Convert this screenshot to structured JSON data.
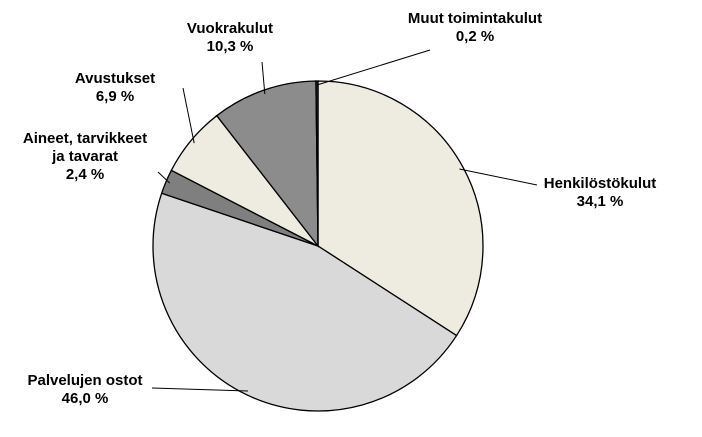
{
  "chart_data": {
    "type": "pie",
    "categories": [
      "Henkilöstökulut",
      "Palvelujen ostot",
      "Aineet, tarvikkeet ja tavarat",
      "Avustukset",
      "Vuokrakulut",
      "Muut toimintakulut"
    ],
    "values": [
      34.1,
      46.0,
      2.4,
      6.9,
      10.3,
      0.2
    ],
    "value_labels": [
      "34,1 %",
      "46,0 %",
      "2,4 %",
      "6,9 %",
      "10,3 %",
      "0,2 %"
    ],
    "colors": [
      "#eeebe0",
      "#d9d9d9",
      "#7f7f7f",
      "#eeebe0",
      "#8c8c8c",
      "#333333"
    ]
  }
}
